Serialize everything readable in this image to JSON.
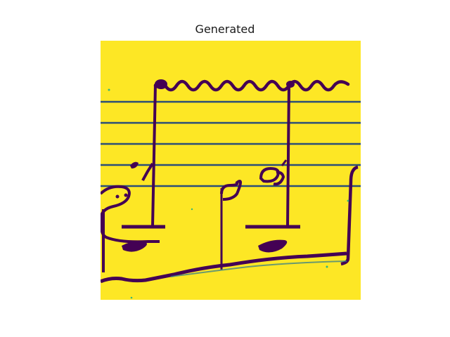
{
  "figure": {
    "title": "Generated"
  },
  "image": {
    "colormap": "viridis",
    "background_color": "#fde725",
    "ink_color": "#440154",
    "edge_color": "#2a788e",
    "accent_color": "#35b779"
  }
}
